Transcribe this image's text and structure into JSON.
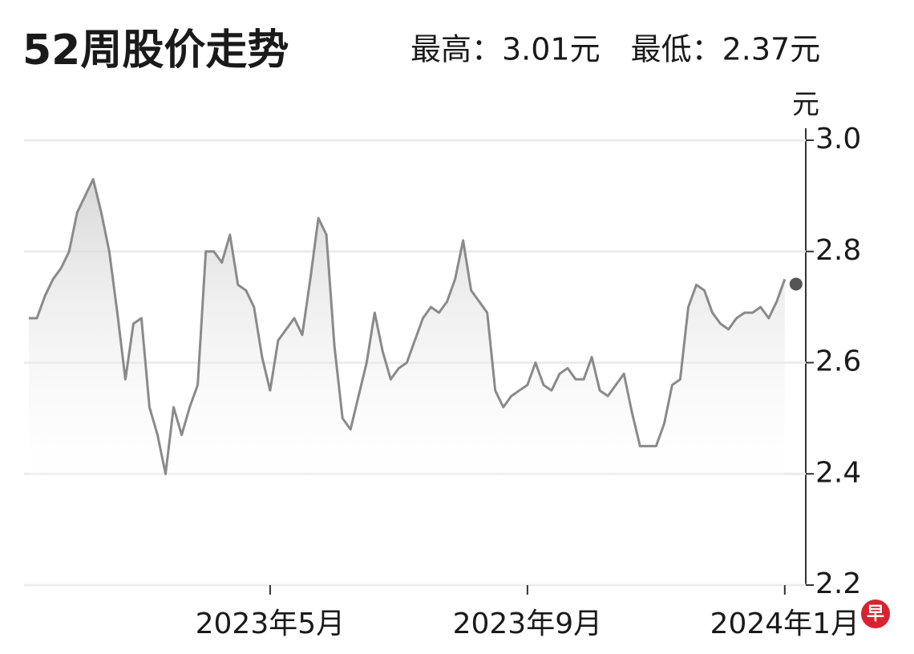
{
  "chart_data": {
    "type": "area-line",
    "title": "52周股价走势",
    "subtitle": "最高：3.01元　最低：2.37元",
    "y_unit": "元",
    "logo": "早",
    "color": "#8a8a8a",
    "categories": [
      null,
      null,
      null,
      null,
      null,
      null,
      null,
      null,
      null,
      null,
      null,
      null,
      null,
      null,
      null,
      null,
      null,
      null,
      null,
      null,
      null,
      null,
      null,
      null,
      null,
      null,
      null,
      null,
      null,
      null,
      "2023年5月",
      null,
      null,
      null,
      null,
      null,
      null,
      null,
      null,
      null,
      null,
      null,
      null,
      null,
      null,
      null,
      null,
      null,
      null,
      null,
      null,
      null,
      null,
      null,
      null,
      null,
      null,
      null,
      null,
      null,
      null,
      null,
      "2023年9月",
      null,
      null,
      null,
      null,
      null,
      null,
      null,
      null,
      null,
      null,
      null,
      null,
      null,
      null,
      null,
      null,
      null,
      null,
      null,
      null,
      null,
      null,
      null,
      null,
      null,
      null,
      null,
      null,
      null,
      null,
      null,
      "2024年1月"
    ],
    "values": [
      2.68,
      2.68,
      2.72,
      2.75,
      2.77,
      2.8,
      2.87,
      2.9,
      2.93,
      2.87,
      2.8,
      2.69,
      2.57,
      2.67,
      2.68,
      2.52,
      2.47,
      2.4,
      2.52,
      2.47,
      2.52,
      2.56,
      2.8,
      2.8,
      2.78,
      2.83,
      2.74,
      2.73,
      2.7,
      2.61,
      2.55,
      2.64,
      2.66,
      2.68,
      2.65,
      2.75,
      2.86,
      2.83,
      2.63,
      2.5,
      2.48,
      2.54,
      2.6,
      2.69,
      2.62,
      2.57,
      2.59,
      2.6,
      2.64,
      2.68,
      2.7,
      2.69,
      2.71,
      2.75,
      2.82,
      2.73,
      2.71,
      2.69,
      2.55,
      2.52,
      2.54,
      2.55,
      2.56,
      2.6,
      2.56,
      2.55,
      2.58,
      2.59,
      2.57,
      2.57,
      2.61,
      2.55,
      2.54,
      2.56,
      2.58,
      2.51,
      2.45,
      2.45,
      2.45,
      2.49,
      2.56,
      2.57,
      2.7,
      2.74,
      2.73,
      2.69,
      2.67,
      2.66,
      2.68,
      2.69,
      2.69,
      2.7,
      2.68,
      2.71,
      2.75
    ],
    "ylim": [
      2.2,
      3.0
    ],
    "yticks": [
      2.2,
      2.4,
      2.6,
      2.8,
      {
        "value": 3,
        "label": "3.0"
      }
    ],
    "grid": true
  }
}
